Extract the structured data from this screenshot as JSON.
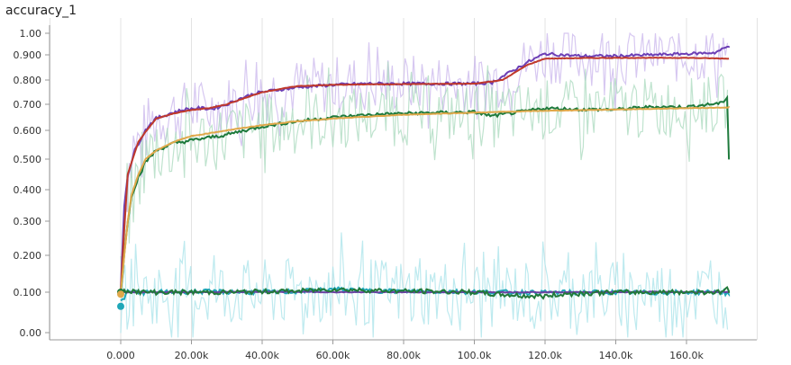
{
  "title": "accuracy_1",
  "chart_data": {
    "type": "line",
    "title": "accuracy_1",
    "xlabel": "",
    "ylabel": "",
    "xlim": [
      -20000,
      180000
    ],
    "ylim": [
      -0.03,
      1.02
    ],
    "y_scale": "nonlinear (tensorboard-like, expanded near 0)",
    "grid": "vertical lines",
    "x_ticks": [
      {
        "value": 0,
        "label": "0.000"
      },
      {
        "value": 20000,
        "label": "20.00k"
      },
      {
        "value": 40000,
        "label": "40.00k"
      },
      {
        "value": 60000,
        "label": "60.00k"
      },
      {
        "value": 80000,
        "label": "80.00k"
      },
      {
        "value": 100000,
        "label": "100.0k"
      },
      {
        "value": 120000,
        "label": "120.0k"
      },
      {
        "value": 140000,
        "label": "140.0k"
      },
      {
        "value": 160000,
        "label": "160.0k"
      }
    ],
    "y_ticks": [
      {
        "value": 1.0,
        "label": "1.00"
      },
      {
        "value": 0.9,
        "label": "0.900"
      },
      {
        "value": 0.8,
        "label": "0.800"
      },
      {
        "value": 0.7,
        "label": "0.700"
      },
      {
        "value": 0.6,
        "label": "0.600"
      },
      {
        "value": 0.5,
        "label": "0.500"
      },
      {
        "value": 0.4,
        "label": "0.400"
      },
      {
        "value": 0.3,
        "label": "0.300"
      },
      {
        "value": 0.2,
        "label": "0.200"
      },
      {
        "value": 0.1,
        "label": "0.100"
      },
      {
        "value": 0.0,
        "label": "0.00"
      }
    ],
    "series": [
      {
        "color": "#6c3fb5",
        "raw_color": "#c9b6ec",
        "x": [
          0,
          1000,
          2000,
          4000,
          6000,
          8000,
          10000,
          14000,
          18000,
          22000,
          26000,
          30000,
          34000,
          38000,
          42000,
          50000,
          60000,
          70000,
          80000,
          90000,
          100000,
          105000,
          110000,
          115000,
          120000,
          130000,
          140000,
          150000,
          160000,
          168000,
          172000
        ],
        "values": [
          0.1,
          0.35,
          0.45,
          0.53,
          0.58,
          0.62,
          0.645,
          0.665,
          0.68,
          0.685,
          0.683,
          0.7,
          0.725,
          0.745,
          0.755,
          0.77,
          0.78,
          0.785,
          0.785,
          0.785,
          0.785,
          0.79,
          0.83,
          0.87,
          0.905,
          0.895,
          0.895,
          0.9,
          0.905,
          0.91,
          0.94
        ]
      },
      {
        "color": "#c0392b",
        "x": [
          0,
          2000,
          5000,
          10000,
          15000,
          20000,
          25000,
          30000,
          35000,
          40000,
          50000,
          60000,
          70000,
          80000,
          90000,
          100000,
          108000,
          115000,
          120000,
          130000,
          140000,
          150000,
          160000,
          172000
        ],
        "values": [
          0.1,
          0.45,
          0.56,
          0.645,
          0.665,
          0.678,
          0.685,
          0.7,
          0.725,
          0.75,
          0.775,
          0.78,
          0.782,
          0.783,
          0.784,
          0.785,
          0.8,
          0.86,
          0.885,
          0.887,
          0.888,
          0.888,
          0.888,
          0.885
        ]
      },
      {
        "color": "#1e7a3c",
        "raw_color": "#a9d9bd",
        "x": [
          0,
          1000,
          2000,
          3000,
          5000,
          7000,
          10000,
          15000,
          20000,
          25000,
          30000,
          35000,
          40000,
          50000,
          60000,
          70000,
          80000,
          90000,
          100000,
          105000,
          110000,
          120000,
          130000,
          140000,
          150000,
          160000,
          170000,
          171500,
          172000
        ],
        "values": [
          0.1,
          0.2,
          0.3,
          0.38,
          0.44,
          0.49,
          0.53,
          0.555,
          0.565,
          0.575,
          0.585,
          0.6,
          0.615,
          0.635,
          0.65,
          0.66,
          0.665,
          0.668,
          0.67,
          0.655,
          0.665,
          0.685,
          0.68,
          0.68,
          0.69,
          0.69,
          0.705,
          0.73,
          0.5
        ]
      },
      {
        "color": "#e0a84a",
        "x": [
          0,
          1000,
          2000,
          3000,
          5000,
          7000,
          10000,
          15000,
          20000,
          30000,
          40000,
          50000,
          60000,
          80000,
          100000,
          120000,
          140000,
          160000,
          172000
        ],
        "values": [
          0.1,
          0.2,
          0.3,
          0.38,
          0.45,
          0.5,
          0.53,
          0.56,
          0.58,
          0.6,
          0.62,
          0.635,
          0.645,
          0.66,
          0.668,
          0.675,
          0.68,
          0.685,
          0.688
        ]
      },
      {
        "color": "#1fa7b8",
        "raw_color": "#a8e3ea",
        "x": [
          0,
          2000,
          10000,
          20000,
          30000,
          40000,
          50000,
          60000,
          70000,
          80000,
          90000,
          100000,
          110000,
          120000,
          130000,
          140000,
          150000,
          160000,
          170000,
          172000
        ],
        "values": [
          0.075,
          0.1,
          0.1,
          0.102,
          0.101,
          0.1,
          0.102,
          0.108,
          0.104,
          0.103,
          0.102,
          0.101,
          0.1,
          0.099,
          0.1,
          0.1,
          0.099,
          0.1,
          0.101,
          0.095
        ]
      },
      {
        "color": "#6a3fa0",
        "x": [
          0,
          2000,
          10000,
          20000,
          30000,
          40000,
          50000,
          60000,
          70000,
          80000,
          90000,
          100000,
          110000,
          120000,
          130000,
          140000,
          150000,
          160000,
          170000,
          172000
        ],
        "values": [
          0.1,
          0.1,
          0.1,
          0.1,
          0.1,
          0.101,
          0.101,
          0.1,
          0.1,
          0.1,
          0.1,
          0.1,
          0.1,
          0.1,
          0.1,
          0.1,
          0.101,
          0.1,
          0.101,
          0.1
        ]
      },
      {
        "color": "#22793a",
        "x": [
          0,
          2000,
          6000,
          10000,
          20000,
          30000,
          40000,
          50000,
          60000,
          70000,
          80000,
          90000,
          100000,
          105000,
          110000,
          115000,
          120000,
          125000,
          130000,
          140000,
          150000,
          160000,
          170000,
          171500,
          172000
        ],
        "values": [
          0.1,
          0.105,
          0.1,
          0.1,
          0.1,
          0.1,
          0.102,
          0.103,
          0.108,
          0.105,
          0.103,
          0.102,
          0.1,
          0.095,
          0.093,
          0.09,
          0.09,
          0.095,
          0.097,
          0.1,
          0.1,
          0.101,
          0.1,
          0.115,
          0.098
        ]
      }
    ],
    "start_markers": [
      {
        "x": 0,
        "y": 0.1,
        "color": "#1e7a3c"
      },
      {
        "x": 0,
        "y": 0.095,
        "color": "#e0a84a"
      },
      {
        "x": 0,
        "y": 0.065,
        "color": "#1fa7b8"
      }
    ]
  }
}
